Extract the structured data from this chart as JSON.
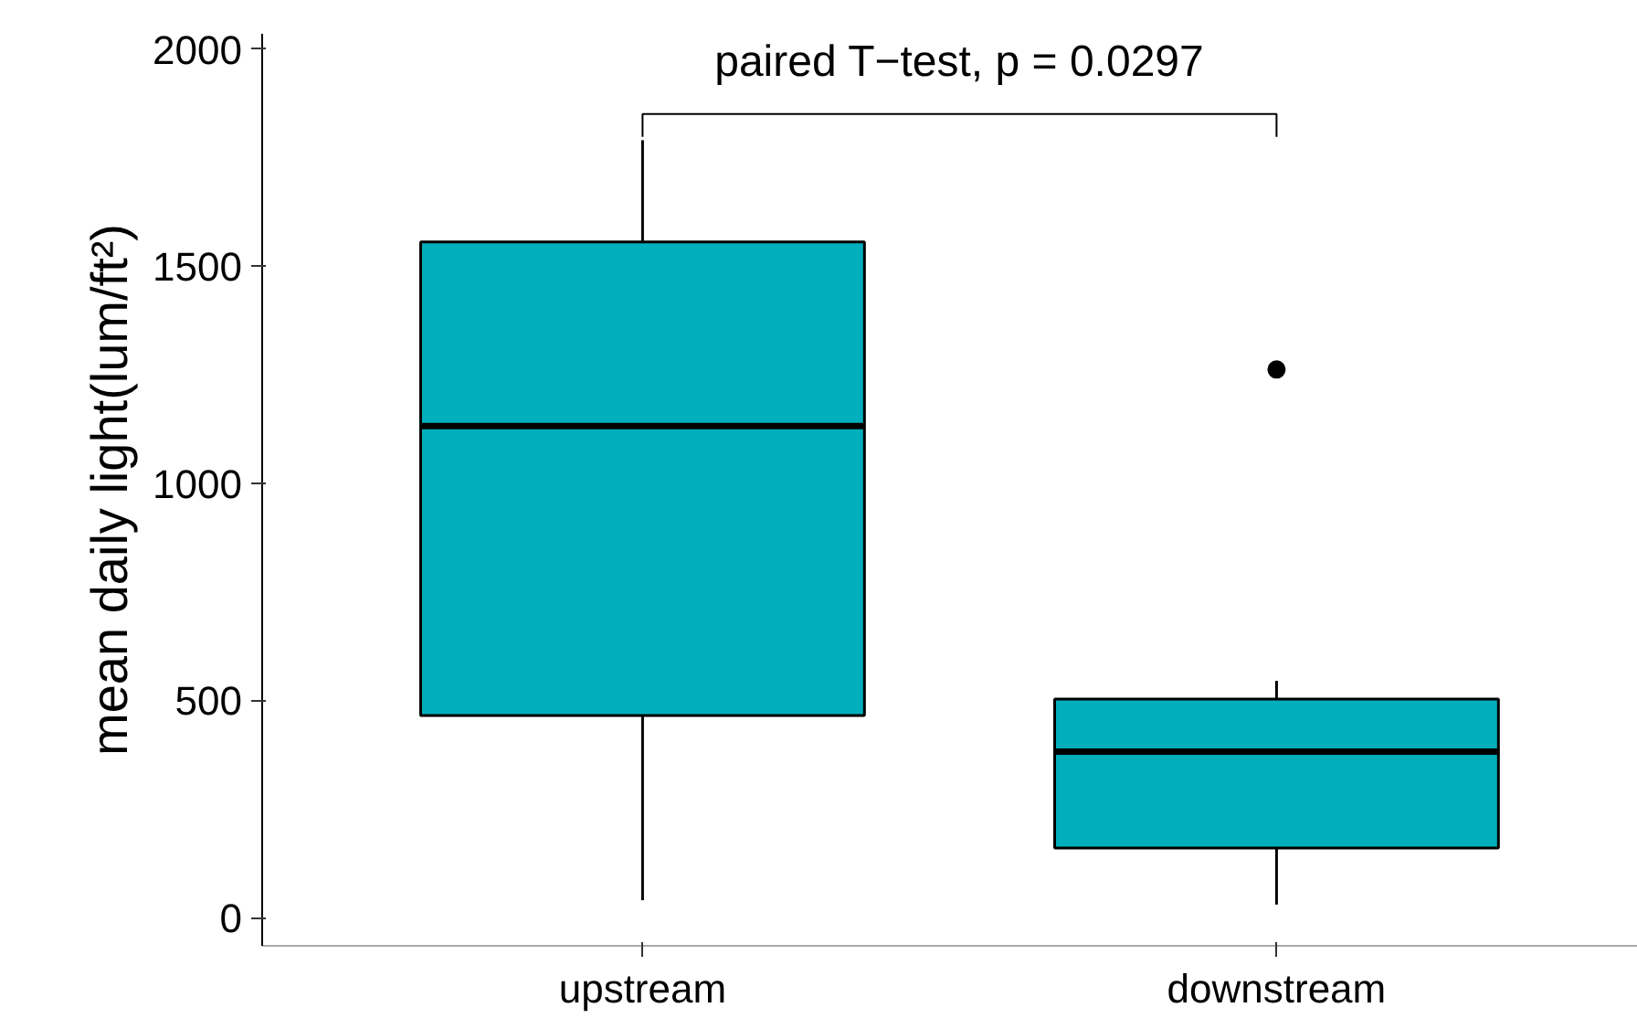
{
  "chart_data": {
    "type": "box",
    "categories": [
      "upstream",
      "downstream"
    ],
    "ylabel": "mean daily light(lum/ft²)",
    "color": "#00afbb",
    "boxes": [
      {
        "low": 40,
        "q1": 465,
        "median": 1132,
        "q3": 1556,
        "high": 1790
      },
      {
        "low": 30,
        "q1": 160,
        "median": 382,
        "q3": 503,
        "high": 545,
        "outliers": [
          1262
        ]
      }
    ],
    "ylim": [
      -65,
      2035
    ],
    "yticks": [
      0,
      500,
      1000,
      1500,
      2000
    ],
    "grid": false,
    "annotations": [
      "paired T−test, p = 0.0297"
    ]
  }
}
